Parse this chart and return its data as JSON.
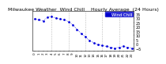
{
  "title": "Milwaukee Weather  Wind Chill    Hourly Average  (24 Hours)",
  "hours": [
    0,
    1,
    2,
    3,
    4,
    5,
    6,
    7,
    8,
    9,
    10,
    11,
    12,
    13,
    14,
    15,
    16,
    17,
    18,
    19,
    20,
    21,
    22,
    23
  ],
  "wind_chill": [
    29,
    28,
    27,
    31,
    32,
    30,
    29,
    28,
    26,
    22,
    17,
    12,
    8,
    4,
    1,
    -1,
    -2,
    -3,
    -4,
    -5,
    -4,
    -3,
    -4,
    -5
  ],
  "line_color": "#0000dd",
  "legend_label": "Wind Chill",
  "legend_facecolor": "#0000cc",
  "legend_textcolor": "#ffffff",
  "ylim": [
    -8,
    38
  ],
  "ytick_values": [
    -5,
    0,
    5,
    10,
    15,
    20,
    25,
    30,
    35
  ],
  "background_color": "#ffffff",
  "grid_color": "#aaaaaa",
  "title_fontsize": 4.5,
  "tick_fontsize": 3.5,
  "legend_fontsize": 3.8,
  "vgrid_positions": [
    4,
    8,
    12,
    16,
    20
  ]
}
